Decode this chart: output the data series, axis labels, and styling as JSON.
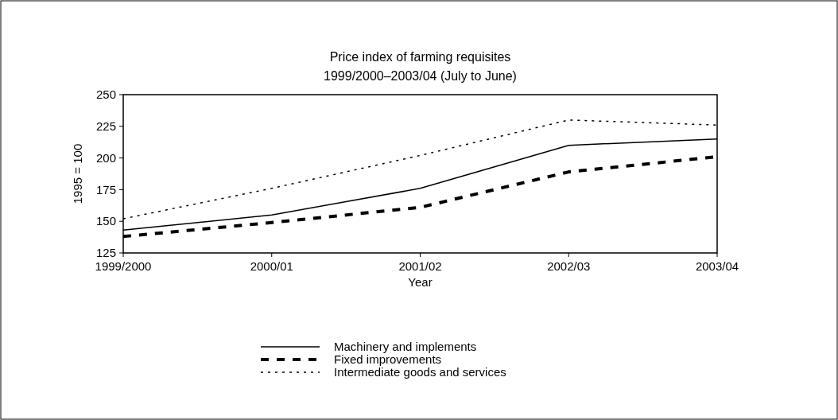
{
  "chart_data": {
    "type": "line",
    "title": "Price index of farming requisites",
    "subtitle": "1999/2000–2003/04 (July to June)",
    "xlabel": "Year",
    "ylabel": "1995 = 100",
    "categories": [
      "1999/2000",
      "2000/01",
      "2001/02",
      "2002/03",
      "2003/04"
    ],
    "series": [
      {
        "name": "Machinery and implements",
        "color": "#000000",
        "line_style": "solid",
        "values": [
          143,
          155,
          176,
          210,
          215
        ]
      },
      {
        "name": "Fixed improvements",
        "color": "#000000",
        "line_style": "dashed",
        "values": [
          138,
          149,
          161,
          189,
          201
        ]
      },
      {
        "name": "Intermediate goods and services",
        "color": "#000000",
        "line_style": "dotted",
        "values": [
          152,
          176,
          202,
          230,
          226
        ]
      }
    ],
    "ylim": [
      125,
      250
    ],
    "yticks": [
      125,
      150,
      175,
      200,
      225,
      250
    ],
    "grid": false,
    "legend": "bottom",
    "marker": "none"
  }
}
